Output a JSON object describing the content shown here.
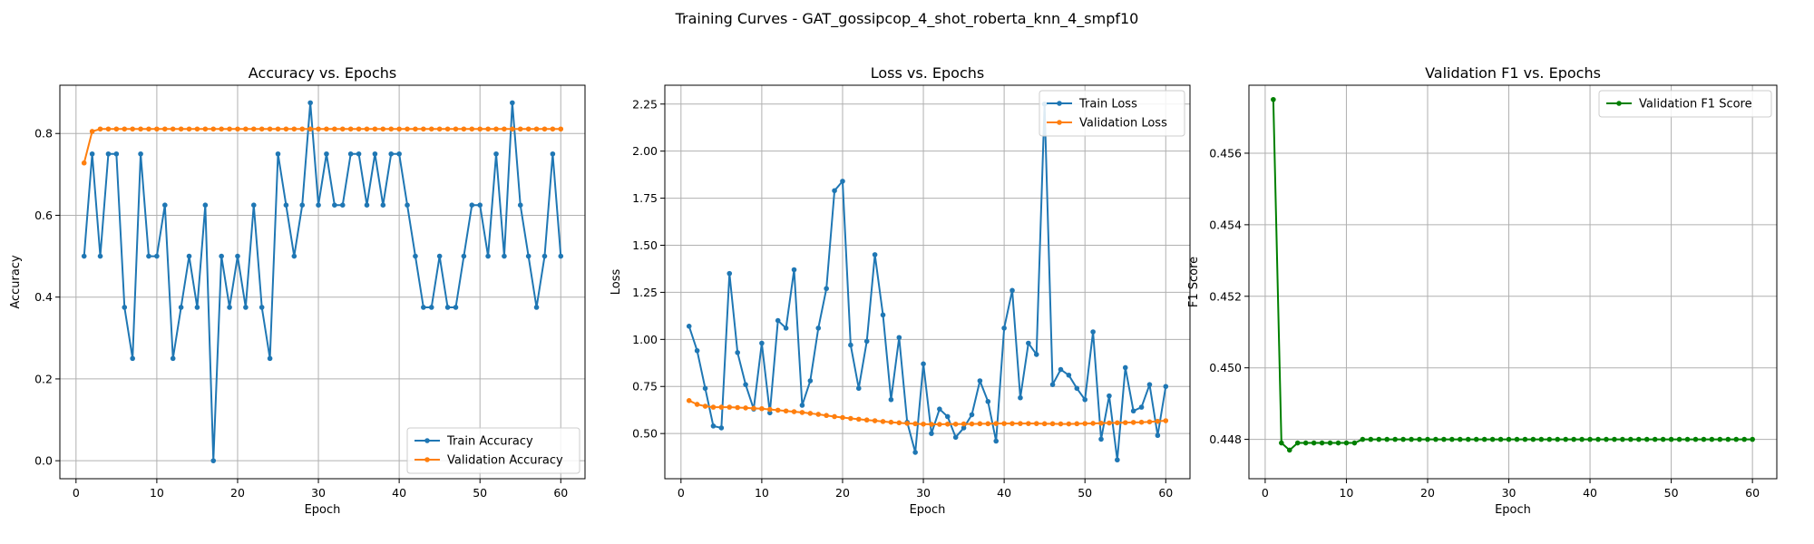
{
  "figure": {
    "suptitle": "Training Curves - GAT_gossipcop_4_shot_roberta_knn_4_smpf10"
  },
  "colors": {
    "train": "#1f77b4",
    "validation": "#ff7f0e",
    "f1": "#008000",
    "grid": "#b0b0b0"
  },
  "chart_data": [
    {
      "type": "line",
      "title": "Accuracy vs. Epochs",
      "xlabel": "Epoch",
      "ylabel": "Accuracy",
      "xlim": [
        -2.0,
        63.0
      ],
      "ylim": [
        -0.044,
        0.918
      ],
      "xticks": [
        0,
        10,
        20,
        30,
        40,
        50,
        60
      ],
      "xtick_labels": [
        "0",
        "10",
        "20",
        "30",
        "40",
        "50",
        "60"
      ],
      "yticks": [
        0.0,
        0.2,
        0.4,
        0.6,
        0.8
      ],
      "ytick_labels": [
        "0.0",
        "0.2",
        "0.4",
        "0.6",
        "0.8"
      ],
      "grid": true,
      "legend_position": "bottom-right",
      "x_start": 1,
      "series": [
        {
          "name": "Train Accuracy",
          "color": "#1f77b4",
          "values": [
            0.5,
            0.75,
            0.5,
            0.75,
            0.75,
            0.375,
            0.25,
            0.75,
            0.5,
            0.5,
            0.625,
            0.25,
            0.375,
            0.5,
            0.375,
            0.625,
            0.0,
            0.5,
            0.375,
            0.5,
            0.375,
            0.625,
            0.375,
            0.25,
            0.75,
            0.625,
            0.5,
            0.625,
            0.875,
            0.625,
            0.75,
            0.625,
            0.625,
            0.75,
            0.75,
            0.625,
            0.75,
            0.625,
            0.75,
            0.75,
            0.625,
            0.5,
            0.375,
            0.375,
            0.5,
            0.375,
            0.375,
            0.5,
            0.625,
            0.625,
            0.5,
            0.75,
            0.5,
            0.875,
            0.625,
            0.5,
            0.375,
            0.5,
            0.75,
            0.5
          ]
        },
        {
          "name": "Validation Accuracy",
          "color": "#ff7f0e",
          "values": [
            0.728,
            0.805,
            0.811,
            0.811,
            0.811,
            0.811,
            0.811,
            0.811,
            0.811,
            0.811,
            0.811,
            0.811,
            0.811,
            0.811,
            0.811,
            0.811,
            0.811,
            0.811,
            0.811,
            0.811,
            0.811,
            0.811,
            0.811,
            0.811,
            0.811,
            0.811,
            0.811,
            0.811,
            0.811,
            0.811,
            0.811,
            0.811,
            0.811,
            0.811,
            0.811,
            0.811,
            0.811,
            0.811,
            0.811,
            0.811,
            0.811,
            0.811,
            0.811,
            0.811,
            0.811,
            0.811,
            0.811,
            0.811,
            0.811,
            0.811,
            0.811,
            0.811,
            0.811,
            0.811,
            0.811,
            0.811,
            0.811,
            0.811,
            0.811,
            0.811
          ]
        }
      ]
    },
    {
      "type": "line",
      "title": "Loss vs. Epochs",
      "xlabel": "Epoch",
      "ylabel": "Loss",
      "xlim": [
        -2.0,
        63.0
      ],
      "ylim": [
        0.26,
        2.35
      ],
      "xticks": [
        0,
        10,
        20,
        30,
        40,
        50,
        60
      ],
      "xtick_labels": [
        "0",
        "10",
        "20",
        "30",
        "40",
        "50",
        "60"
      ],
      "yticks": [
        0.5,
        0.75,
        1.0,
        1.25,
        1.5,
        1.75,
        2.0,
        2.25
      ],
      "ytick_labels": [
        "0.50",
        "0.75",
        "1.00",
        "1.25",
        "1.50",
        "1.75",
        "2.00",
        "2.25"
      ],
      "grid": true,
      "legend_position": "top-right",
      "x_start": 1,
      "series": [
        {
          "name": "Train Loss",
          "color": "#1f77b4",
          "values": [
            1.07,
            0.94,
            0.74,
            0.54,
            0.53,
            1.35,
            0.93,
            0.76,
            0.63,
            0.98,
            0.61,
            1.1,
            1.06,
            1.37,
            0.65,
            0.78,
            1.06,
            1.27,
            1.79,
            1.84,
            0.97,
            0.74,
            0.99,
            1.45,
            1.13,
            0.68,
            1.01,
            0.56,
            0.4,
            0.87,
            0.5,
            0.63,
            0.59,
            0.48,
            0.53,
            0.6,
            0.78,
            0.67,
            0.46,
            1.06,
            1.26,
            0.69,
            0.98,
            0.92,
            2.25,
            0.76,
            0.84,
            0.81,
            0.74,
            0.68,
            1.04,
            0.47,
            0.7,
            0.36,
            0.85,
            0.62,
            0.64,
            0.76,
            0.49,
            0.75
          ]
        },
        {
          "name": "Validation Loss",
          "color": "#ff7f0e",
          "values": [
            0.675,
            0.655,
            0.645,
            0.64,
            0.64,
            0.64,
            0.638,
            0.636,
            0.634,
            0.632,
            0.628,
            0.624,
            0.62,
            0.616,
            0.612,
            0.607,
            0.602,
            0.596,
            0.59,
            0.585,
            0.58,
            0.576,
            0.572,
            0.568,
            0.564,
            0.56,
            0.557,
            0.554,
            0.552,
            0.55,
            0.549,
            0.549,
            0.55,
            0.55,
            0.551,
            0.551,
            0.552,
            0.552,
            0.553,
            0.553,
            0.553,
            0.553,
            0.553,
            0.553,
            0.552,
            0.552,
            0.551,
            0.551,
            0.552,
            0.553,
            0.554,
            0.555,
            0.556,
            0.557,
            0.558,
            0.559,
            0.56,
            0.562,
            0.565,
            0.568
          ]
        }
      ]
    },
    {
      "type": "line",
      "title": "Validation F1 vs. Epochs",
      "xlabel": "Epoch",
      "ylabel": "F1 Score",
      "xlim": [
        -2.0,
        63.0
      ],
      "ylim": [
        0.4469,
        0.4579
      ],
      "xticks": [
        0,
        10,
        20,
        30,
        40,
        50,
        60
      ],
      "xtick_labels": [
        "0",
        "10",
        "20",
        "30",
        "40",
        "50",
        "60"
      ],
      "yticks": [
        0.448,
        0.45,
        0.452,
        0.454,
        0.456
      ],
      "ytick_labels": [
        "0.448",
        "0.450",
        "0.452",
        "0.454",
        "0.456"
      ],
      "grid": true,
      "legend_position": "top-right",
      "x_start": 1,
      "series": [
        {
          "name": "Validation F1 Score",
          "color": "#008000",
          "values": [
            0.4575,
            0.4479,
            0.4477,
            0.4479,
            0.4479,
            0.4479,
            0.4479,
            0.4479,
            0.4479,
            0.4479,
            0.4479,
            0.448,
            0.448,
            0.448,
            0.448,
            0.448,
            0.448,
            0.448,
            0.448,
            0.448,
            0.448,
            0.448,
            0.448,
            0.448,
            0.448,
            0.448,
            0.448,
            0.448,
            0.448,
            0.448,
            0.448,
            0.448,
            0.448,
            0.448,
            0.448,
            0.448,
            0.448,
            0.448,
            0.448,
            0.448,
            0.448,
            0.448,
            0.448,
            0.448,
            0.448,
            0.448,
            0.448,
            0.448,
            0.448,
            0.448,
            0.448,
            0.448,
            0.448,
            0.448,
            0.448,
            0.448,
            0.448,
            0.448,
            0.448,
            0.448
          ]
        }
      ]
    }
  ]
}
